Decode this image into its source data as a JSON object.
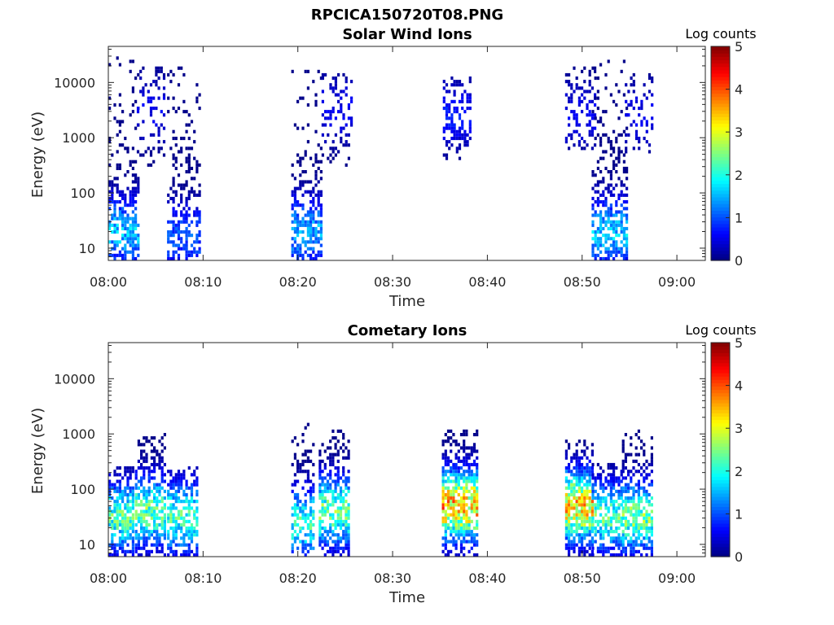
{
  "figure": {
    "filename_title": "RPCICA150720T08.PNG"
  },
  "chart_data": [
    {
      "type": "heatmap",
      "title": "Solar Wind Ions",
      "xlabel": "Time",
      "ylabel": "Energy (eV)",
      "yscale": "log",
      "ylim": [
        6,
        45000
      ],
      "xlim": [
        "08:00",
        "09:03"
      ],
      "x_ticks": [
        "08:00",
        "08:10",
        "08:20",
        "08:30",
        "08:40",
        "08:50",
        "09:00"
      ],
      "y_ticks": [
        "10",
        "100",
        "1000",
        "10000"
      ],
      "colorbar": {
        "label": "Log counts",
        "min": 0,
        "max": 5,
        "ticks": [
          "0",
          "1",
          "2",
          "3",
          "4",
          "5"
        ],
        "colormap": "jet"
      },
      "bursts": [
        {
          "start_min": 0.0,
          "end_min": 3.2,
          "emin": 6,
          "emax": 30000,
          "peak_logE": 1.3,
          "peak": 2.0,
          "density": 0.55
        },
        {
          "start_min": 3.0,
          "end_min": 6.0,
          "emin": 300,
          "emax": 20000,
          "peak_logE": 3.5,
          "peak": 0.7,
          "density": 0.15
        },
        {
          "start_min": 6.2,
          "end_min": 9.6,
          "emin": 6,
          "emax": 20000,
          "peak_logE": 1.2,
          "peak": 1.3,
          "density": 0.5
        },
        {
          "start_min": 19.3,
          "end_min": 22.5,
          "emin": 6,
          "emax": 20000,
          "peak_logE": 1.3,
          "peak": 1.8,
          "density": 0.6
        },
        {
          "start_min": 22.5,
          "end_min": 25.7,
          "emin": 300,
          "emax": 15000,
          "peak_logE": 3.5,
          "peak": 0.7,
          "density": 0.2
        },
        {
          "start_min": 35.3,
          "end_min": 38.1,
          "emin": 400,
          "emax": 12000,
          "peak_logE": 3.4,
          "peak": 0.9,
          "density": 0.3
        },
        {
          "start_min": 48.2,
          "end_min": 51.5,
          "emin": 500,
          "emax": 20000,
          "peak_logE": 3.4,
          "peak": 0.7,
          "density": 0.2
        },
        {
          "start_min": 51.0,
          "end_min": 54.8,
          "emin": 6,
          "emax": 25000,
          "peak_logE": 1.3,
          "peak": 2.0,
          "density": 0.55
        },
        {
          "start_min": 54.5,
          "end_min": 57.5,
          "emin": 500,
          "emax": 15000,
          "peak_logE": 3.4,
          "peak": 0.7,
          "density": 0.2
        }
      ]
    },
    {
      "type": "heatmap",
      "title": "Cometary Ions",
      "xlabel": "Time",
      "ylabel": "Energy (eV)",
      "yscale": "log",
      "ylim": [
        6,
        45000
      ],
      "xlim": [
        "08:00",
        "09:03"
      ],
      "x_ticks": [
        "08:00",
        "08:10",
        "08:20",
        "08:30",
        "08:40",
        "08:50",
        "09:00"
      ],
      "y_ticks": [
        "10",
        "100",
        "1000",
        "10000"
      ],
      "colorbar": {
        "label": "Log counts",
        "min": 0,
        "max": 5,
        "ticks": [
          "0",
          "1",
          "2",
          "3",
          "4",
          "5"
        ],
        "colormap": "jet"
      },
      "bursts": [
        {
          "start_min": 0.0,
          "end_min": 2.7,
          "emin": 6,
          "emax": 250,
          "peak_logE": 1.5,
          "peak": 2.8,
          "density": 0.65
        },
        {
          "start_min": 2.8,
          "end_min": 6.0,
          "emin": 6,
          "emax": 1000,
          "peak_logE": 1.6,
          "peak": 3.0,
          "density": 0.6
        },
        {
          "start_min": 6.2,
          "end_min": 9.3,
          "emin": 6,
          "emax": 250,
          "peak_logE": 1.5,
          "peak": 2.8,
          "density": 0.6
        },
        {
          "start_min": 19.3,
          "end_min": 21.7,
          "emin": 6,
          "emax": 1500,
          "peak_logE": 1.4,
          "peak": 2.6,
          "density": 0.5
        },
        {
          "start_min": 22.2,
          "end_min": 25.5,
          "emin": 6,
          "emax": 1200,
          "peak_logE": 1.6,
          "peak": 3.0,
          "density": 0.6
        },
        {
          "start_min": 35.2,
          "end_min": 38.8,
          "emin": 6,
          "emax": 1200,
          "peak_logE": 1.7,
          "peak": 4.3,
          "density": 0.75
        },
        {
          "start_min": 48.2,
          "end_min": 51.0,
          "emin": 6,
          "emax": 800,
          "peak_logE": 1.7,
          "peak": 4.2,
          "density": 0.75
        },
        {
          "start_min": 51.0,
          "end_min": 54.2,
          "emin": 6,
          "emax": 300,
          "peak_logE": 1.5,
          "peak": 2.8,
          "density": 0.6
        },
        {
          "start_min": 54.2,
          "end_min": 57.5,
          "emin": 6,
          "emax": 1200,
          "peak_logE": 1.5,
          "peak": 3.1,
          "density": 0.6
        }
      ]
    }
  ]
}
